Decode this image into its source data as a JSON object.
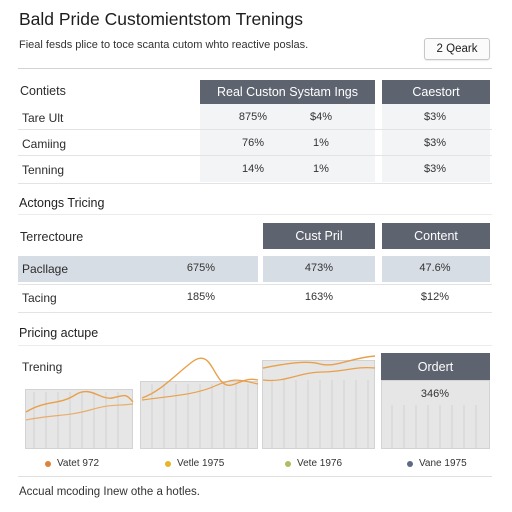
{
  "header": {
    "title": "Bald Pride Customientstom Trenings",
    "subtitle": "Fieal fesds plice to toce scanta cutom whto reactive poslas.",
    "search_button": "2 Qeark"
  },
  "table1": {
    "label_header": "Contiets",
    "col_headers": [
      "Real Custon Systam Ings",
      "Caestort"
    ],
    "rows": [
      {
        "label": "Tare Ult",
        "v1": "875%",
        "v2": "$4%",
        "v3": "$3%"
      },
      {
        "label": "Camiing",
        "v1": "76%",
        "v2": "1%",
        "v3": "$3%"
      },
      {
        "label": "Tenning",
        "v1": "14%",
        "v2": "1%",
        "v3": "$3%"
      }
    ]
  },
  "section_actions": "Actongs Tricing",
  "table2": {
    "label_header": "Terrectoure",
    "col_headers": [
      "Cust Pril",
      "Content"
    ],
    "rows": [
      {
        "label": "Pacllage",
        "v1": "675%",
        "v2": "473%",
        "v3": "47.6%"
      },
      {
        "label": "Tacing",
        "v1": "185%",
        "v2": "163%",
        "v3": "$12%"
      }
    ]
  },
  "section_pricing": "Pricing actupe",
  "chart_panel": {
    "label": "Trening",
    "right_header": "Ordert",
    "right_value": "346%"
  },
  "legend": [
    {
      "label": "Vatet 972",
      "color": "#e0823a"
    },
    {
      "label": "Vetle 1975",
      "color": "#e7b42a"
    },
    {
      "label": "Vete 1976",
      "color": "#a9bf63"
    },
    {
      "label": "Vane 1975",
      "color": "#5c6b85"
    }
  ],
  "footer": "Accual mcoding Inew othe a hotles.",
  "colors": {
    "header_dark": "#5d6470",
    "orange_line": "#e8a04a",
    "row_highlight": "#d7dde4"
  }
}
